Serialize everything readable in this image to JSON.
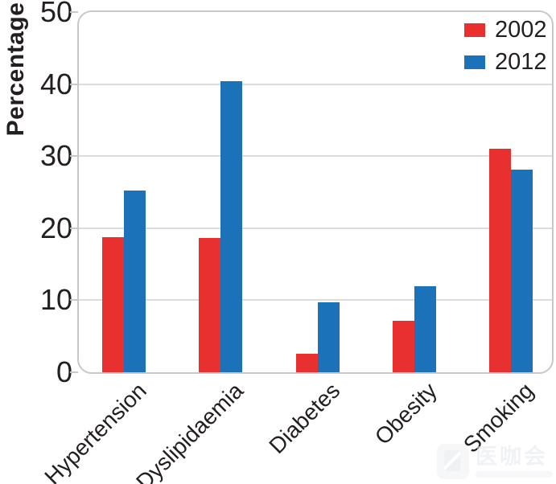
{
  "chart_data": {
    "type": "bar",
    "title": "",
    "categories": [
      "Hypertension",
      "Dyslipidaemia",
      "Diabetes",
      "Obesity",
      "Smoking"
    ],
    "series": [
      {
        "name": "2002",
        "color": "#e8312e",
        "values": [
          18.8,
          18.6,
          2.6,
          7.1,
          31.0
        ]
      },
      {
        "name": "2012",
        "color": "#1b72b8",
        "values": [
          25.2,
          40.4,
          9.7,
          11.9,
          28.1
        ]
      }
    ],
    "xlabel": "",
    "ylabel": "Percentage",
    "ylim": [
      0,
      50
    ],
    "yticks": [
      0,
      10,
      20,
      30,
      40,
      50
    ],
    "grid": "horizontal",
    "legend_position": "top-right",
    "colors": {
      "axis_text": "#231f20",
      "border": "#c6c8ca",
      "gridline": "#dadcdd",
      "background": "#ffffff"
    }
  },
  "watermark": {
    "text": "医咖会"
  }
}
